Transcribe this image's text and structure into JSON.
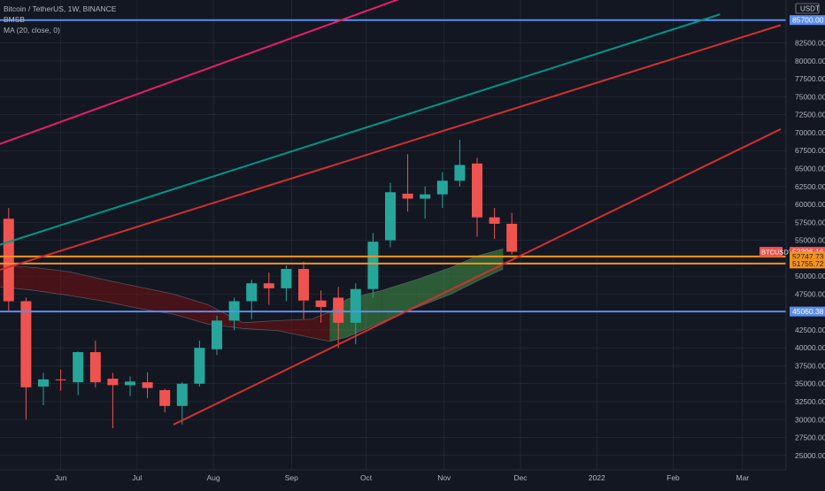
{
  "legend": {
    "symbol": "Bitcoin / TetherUS, 1W, BINANCE",
    "indicator1": "BMSB",
    "indicator2": "MA (20, close, 0)"
  },
  "chart_data": {
    "type": "candlestick",
    "symbol": "BTCUSDT",
    "interval": "1W",
    "exchange": "BINANCE",
    "currency": "USDT",
    "ylim": [
      23000,
      88500
    ],
    "y_ticks": [
      "25000.00",
      "27500.00",
      "30000.00",
      "32500.00",
      "35000.00",
      "37500.00",
      "40000.00",
      "42500.00",
      "45000.00",
      "47500.00",
      "50000.00",
      "52500.00",
      "55000.00",
      "57500.00",
      "60000.00",
      "62500.00",
      "65000.00",
      "67500.00",
      "70000.00",
      "72500.00",
      "75000.00",
      "77500.00",
      "80000.00",
      "82500.00"
    ],
    "x_ticks": [
      {
        "label": "Jun",
        "week": 3.5
      },
      {
        "label": "Jul",
        "week": 7.9
      },
      {
        "label": "Aug",
        "week": 12.3
      },
      {
        "label": "Sep",
        "week": 16.8
      },
      {
        "label": "Oct",
        "week": 21.1
      },
      {
        "label": "Nov",
        "week": 25.6
      },
      {
        "label": "Dec",
        "week": 30.0
      },
      {
        "label": "2022",
        "week": 34.4
      },
      {
        "label": "Feb",
        "week": 38.8
      },
      {
        "label": "Mar",
        "week": 42.8
      }
    ],
    "candles": [
      {
        "o": 58000,
        "h": 59500,
        "l": 45000,
        "c": 46500
      },
      {
        "o": 46500,
        "h": 47000,
        "l": 30000,
        "c": 34500
      },
      {
        "o": 34600,
        "h": 36500,
        "l": 32000,
        "c": 35600
      },
      {
        "o": 35600,
        "h": 37000,
        "l": 34000,
        "c": 35500
      },
      {
        "o": 35200,
        "h": 39500,
        "l": 33400,
        "c": 39400
      },
      {
        "o": 39400,
        "h": 41000,
        "l": 34500,
        "c": 35200
      },
      {
        "o": 35700,
        "h": 36500,
        "l": 28800,
        "c": 34800
      },
      {
        "o": 34800,
        "h": 36000,
        "l": 33300,
        "c": 35300
      },
      {
        "o": 35200,
        "h": 36600,
        "l": 33000,
        "c": 34400
      },
      {
        "o": 34100,
        "h": 34300,
        "l": 31000,
        "c": 31900
      },
      {
        "o": 31900,
        "h": 35200,
        "l": 29300,
        "c": 35000
      },
      {
        "o": 35000,
        "h": 41000,
        "l": 34600,
        "c": 40000
      },
      {
        "o": 39800,
        "h": 44500,
        "l": 39000,
        "c": 43800
      },
      {
        "o": 43800,
        "h": 47000,
        "l": 42500,
        "c": 46500
      },
      {
        "o": 46500,
        "h": 49500,
        "l": 44000,
        "c": 49000
      },
      {
        "o": 49000,
        "h": 50500,
        "l": 46000,
        "c": 48300
      },
      {
        "o": 48300,
        "h": 51500,
        "l": 46500,
        "c": 51000
      },
      {
        "o": 51000,
        "h": 52000,
        "l": 44000,
        "c": 46600
      },
      {
        "o": 46600,
        "h": 48000,
        "l": 43500,
        "c": 45700
      },
      {
        "o": 47000,
        "h": 48500,
        "l": 40000,
        "c": 43500
      },
      {
        "o": 43500,
        "h": 49000,
        "l": 40500,
        "c": 48200
      },
      {
        "o": 48200,
        "h": 56000,
        "l": 47000,
        "c": 54800
      },
      {
        "o": 55000,
        "h": 63000,
        "l": 54000,
        "c": 61700
      },
      {
        "o": 61500,
        "h": 67000,
        "l": 59000,
        "c": 60800
      },
      {
        "o": 60800,
        "h": 62500,
        "l": 58000,
        "c": 61400
      },
      {
        "o": 61400,
        "h": 64500,
        "l": 59500,
        "c": 63300
      },
      {
        "o": 63300,
        "h": 69000,
        "l": 62500,
        "c": 65500
      },
      {
        "o": 65700,
        "h": 66500,
        "l": 55500,
        "c": 58200
      },
      {
        "o": 58200,
        "h": 59500,
        "l": 55200,
        "c": 57300
      },
      {
        "o": 57300,
        "h": 58800,
        "l": 53000,
        "c": 53400
      }
    ],
    "bmsb": [
      {
        "w": 0,
        "u": 51500,
        "l": 48500
      },
      {
        "w": 2,
        "u": 51200,
        "l": 48000
      },
      {
        "w": 4,
        "u": 50600,
        "l": 47300
      },
      {
        "w": 6,
        "u": 49500,
        "l": 46500
      },
      {
        "w": 8,
        "u": 48500,
        "l": 45500
      },
      {
        "w": 10,
        "u": 47500,
        "l": 44700
      },
      {
        "w": 12,
        "u": 46000,
        "l": 43300
      },
      {
        "w": 14,
        "u": 43500,
        "l": 42700
      },
      {
        "w": 16,
        "u": 43800,
        "l": 42400
      },
      {
        "w": 18,
        "u": 44000,
        "l": 41400
      },
      {
        "w": 19,
        "u": 45000,
        "l": 40900
      },
      {
        "w": 20,
        "u": 46800,
        "l": 41500
      },
      {
        "w": 22,
        "u": 48000,
        "l": 43600
      },
      {
        "w": 24,
        "u": 49500,
        "l": 45600
      },
      {
        "w": 26,
        "u": 51200,
        "l": 47500
      },
      {
        "w": 27.5,
        "u": 52800,
        "l": 49300
      },
      {
        "w": 29,
        "u": 53800,
        "l": 51000
      }
    ],
    "horizontal_levels": [
      {
        "price": 85700,
        "color": "#5b8def",
        "label": "85700.00"
      },
      {
        "price": 45060.38,
        "color": "#5b8def",
        "label": "45060.38"
      },
      {
        "price": 52747.73,
        "color": "#f7931a",
        "label": "52747.73"
      },
      {
        "price": 51755.72,
        "color": "#f7931a",
        "label": "51755.72"
      }
    ],
    "current_price": {
      "label": "BTCUSDT",
      "value": "53396.16",
      "price": 53396.16
    },
    "trend_lines": [
      {
        "w1": -0.5,
        "p1": 68000,
        "w2": 24,
        "p2": 89500,
        "color": "#e91e63"
      },
      {
        "w1": -0.5,
        "p1": 54000,
        "w2": 41.5,
        "p2": 86500,
        "color": "#009688"
      },
      {
        "w1": -0.5,
        "p1": 50500,
        "w2": 45,
        "p2": 85000,
        "color": "#d32f2f"
      },
      {
        "w1": 10,
        "p1": 29300,
        "w2": 45,
        "p2": 70500,
        "color": "#d32f2f"
      }
    ],
    "colors": {
      "up": "#26a69a",
      "down": "#ef5350",
      "background": "#131722",
      "grid": "#2a2e39"
    }
  }
}
